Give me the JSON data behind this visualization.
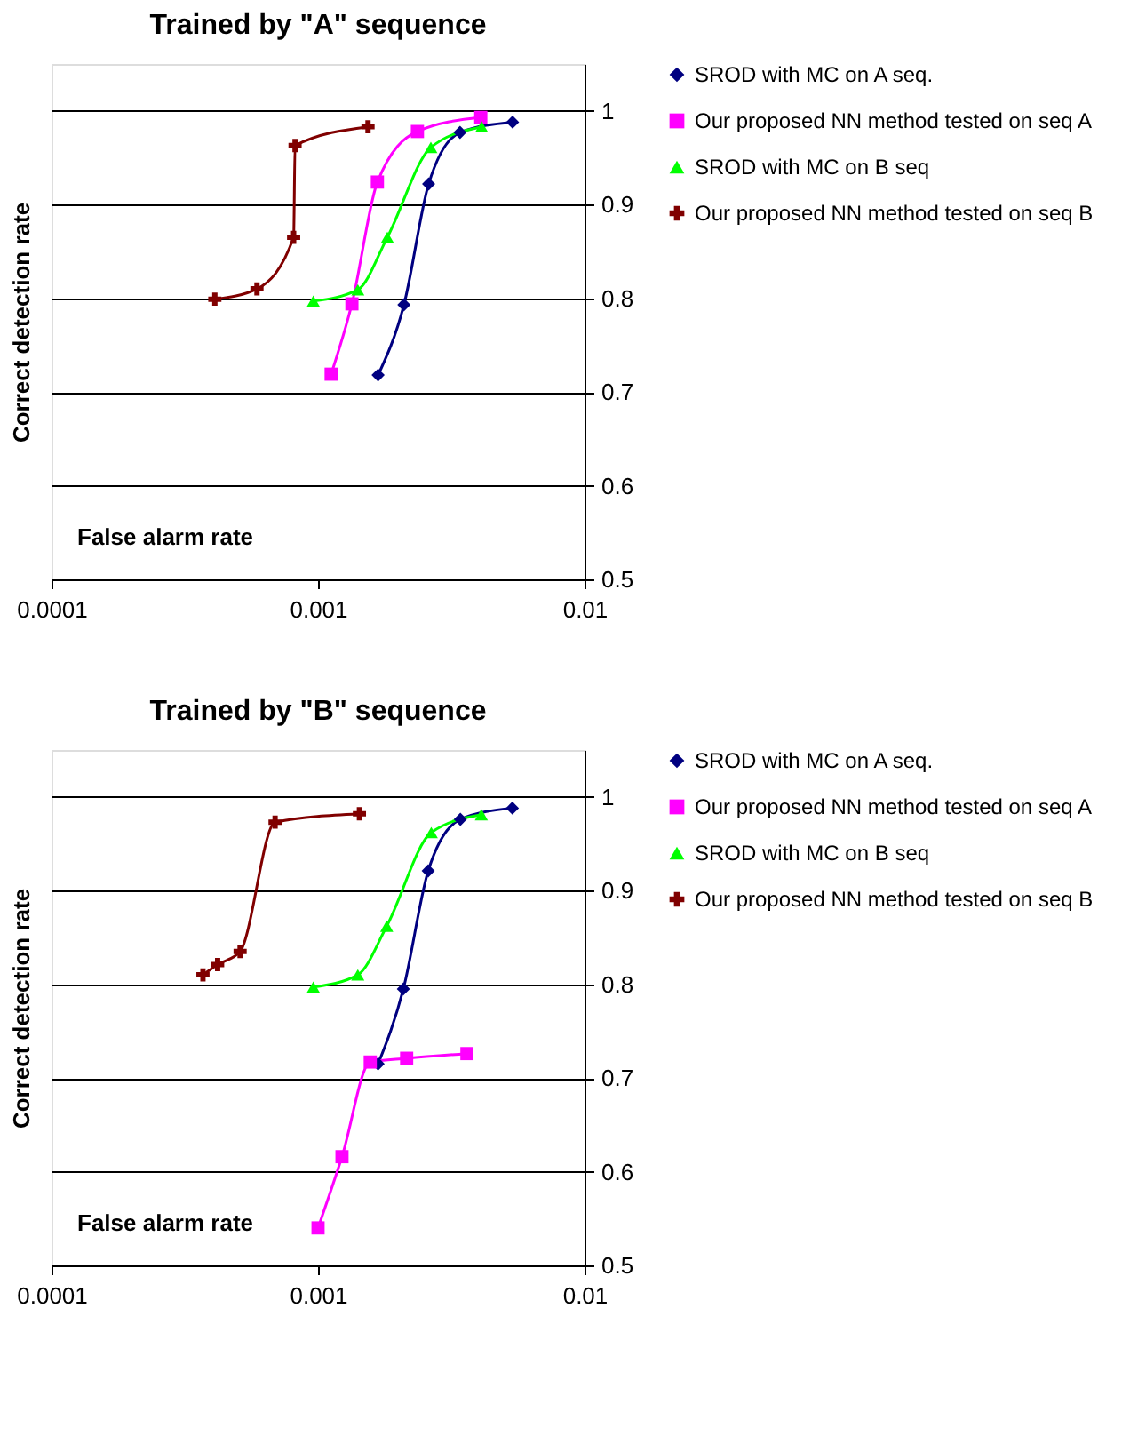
{
  "chart_data": [
    {
      "type": "line",
      "title": "Trained by \"A\" sequence",
      "xlabel": "False alarm rate",
      "ylabel": "Correct detection rate",
      "log": "x",
      "xlim": [
        0.0001,
        0.01
      ],
      "xticks": [
        0.0001,
        0.001,
        0.01
      ],
      "ylim": [
        0.5,
        1.05
      ],
      "yticks": [
        0.5,
        0.6,
        0.7,
        0.8,
        0.9,
        1
      ],
      "grid": "y",
      "legend": "right",
      "series": [
        {
          "name": "SROD with MC on A seq.",
          "color": "#000080",
          "marker": "diamond",
          "x": [
            0.00168,
            0.0021,
            0.0026,
            0.00341,
            0.00537
          ],
          "values": [
            0.718,
            0.793,
            0.922,
            0.977,
            0.988
          ]
        },
        {
          "name": "Our proposed NN method tested on seq A",
          "color": "#ff00ff",
          "marker": "square",
          "x": [
            0.00112,
            0.00134,
            0.00167,
            0.00236,
            0.00408
          ],
          "values": [
            0.719,
            0.794,
            0.924,
            0.978,
            0.993
          ]
        },
        {
          "name": "SROD with MC on B seq",
          "color": "#00ff00",
          "marker": "triangle",
          "x": [
            0.00096,
            0.00141,
            0.00182,
            0.00265,
            0.00411
          ],
          "values": [
            0.797,
            0.809,
            0.865,
            0.961,
            0.983
          ]
        },
        {
          "name": "Our proposed NN method tested on seq B",
          "color": "#800000",
          "marker": "cross",
          "x": [
            0.00041,
            0.00059,
            0.00081,
            0.00082,
            0.00154
          ],
          "values": [
            0.799,
            0.81,
            0.865,
            0.963,
            0.983
          ]
        }
      ]
    },
    {
      "type": "line",
      "title": "Trained by \"B\" sequence",
      "xlabel": "False alarm rate",
      "ylabel": "Correct detection rate",
      "log": "x",
      "xlim": [
        0.0001,
        0.01
      ],
      "xticks": [
        0.0001,
        0.001,
        0.01
      ],
      "ylim": [
        0.5,
        1.05
      ],
      "yticks": [
        0.5,
        0.6,
        0.7,
        0.8,
        0.9,
        1
      ],
      "grid": "y",
      "legend": "right",
      "series": [
        {
          "name": "SROD with MC on A seq.",
          "color": "#000080",
          "marker": "diamond",
          "x": [
            0.00168,
            0.00209,
            0.00259,
            0.00342,
            0.00536
          ],
          "values": [
            0.715,
            0.795,
            0.921,
            0.976,
            0.988
          ]
        },
        {
          "name": "Our proposed NN method tested on seq A",
          "color": "#ff00ff",
          "marker": "square",
          "x": [
            0.001,
            0.00123,
            0.00157,
            0.00215,
            0.00362
          ],
          "values": [
            0.54,
            0.616,
            0.717,
            0.721,
            0.726
          ]
        },
        {
          "name": "SROD with MC on B seq",
          "color": "#00ff00",
          "marker": "triangle",
          "x": [
            0.00096,
            0.00141,
            0.00181,
            0.00266,
            0.0041
          ],
          "values": [
            0.797,
            0.81,
            0.862,
            0.962,
            0.981
          ]
        },
        {
          "name": "Our proposed NN method tested on seq B",
          "color": "#800000",
          "marker": "cross",
          "x": [
            0.00037,
            0.00042,
            0.00051,
            0.00069,
            0.00143
          ],
          "values": [
            0.81,
            0.821,
            0.835,
            0.973,
            0.982
          ]
        }
      ]
    }
  ]
}
